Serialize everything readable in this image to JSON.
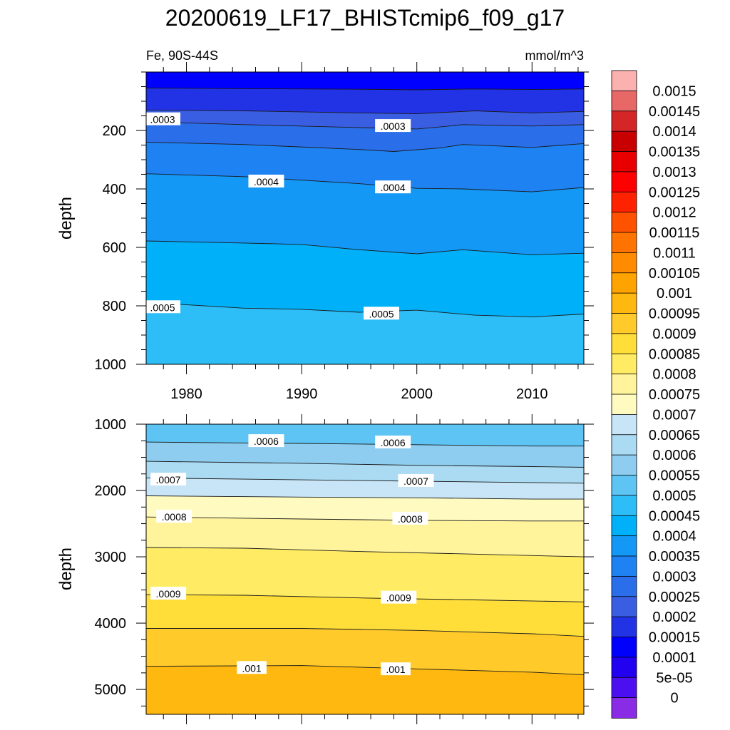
{
  "chart_data": [
    {
      "type": "heatmap",
      "title": "20200619_LF17_BHISTcmip6_f09_g17",
      "left_label": "Fe, 90S-44S",
      "right_label": "mmol/m^3",
      "xlabel": "",
      "ylabel": "depth",
      "xlim": [
        1976.5,
        2014.5
      ],
      "ylim": [
        1000,
        0
      ],
      "xticks": [
        "1980",
        "1990",
        "2000",
        "2010"
      ],
      "yticks": [
        "200",
        "400",
        "600",
        "800",
        "1000"
      ],
      "contours": [
        {
          "level": 0.0002,
          "x": [
            1976.5,
            1985,
            1995,
            2000,
            2005,
            2010,
            2014.5
          ],
          "y": [
            55,
            57,
            59,
            61,
            58,
            60,
            58
          ]
        },
        {
          "level": 0.00025,
          "x": [
            1976.5,
            1985,
            1995,
            2000,
            2005,
            2010,
            2014.5
          ],
          "y": [
            130,
            133,
            140,
            143,
            133,
            140,
            135
          ]
        },
        {
          "level": 0.0003,
          "x": [
            1976.5,
            1985,
            1995,
            2000,
            2002,
            2004,
            2010,
            2014.5
          ],
          "y": [
            170,
            180,
            190,
            195,
            188,
            180,
            185,
            180
          ]
        },
        {
          "level": 0.00035,
          "x": [
            1976.5,
            1985,
            1995,
            1998,
            2002,
            2004,
            2010,
            2014.5
          ],
          "y": [
            240,
            248,
            265,
            272,
            260,
            248,
            258,
            245
          ]
        },
        {
          "level": 0.0004,
          "x": [
            1976.5,
            1985,
            1990,
            1995,
            2000,
            2004,
            2010,
            2014.5
          ],
          "y": [
            348,
            358,
            370,
            382,
            398,
            400,
            410,
            395
          ]
        },
        {
          "level": 0.00045,
          "x": [
            1976.5,
            1985,
            1990,
            1995,
            2000,
            2004,
            2010,
            2014.5
          ],
          "y": [
            578,
            585,
            590,
            608,
            622,
            608,
            625,
            620
          ]
        },
        {
          "level": 0.0005,
          "x": [
            1976.5,
            1985,
            1990,
            1995,
            2000,
            2005,
            2010,
            2014.5
          ],
          "y": [
            788,
            808,
            812,
            822,
            815,
            832,
            838,
            828
          ]
        }
      ],
      "contour_labels": [
        {
          "text": ".0003",
          "x": 1976.5,
          "y": 165
        },
        {
          "text": ".0003",
          "x": 1996.5,
          "y": 188
        },
        {
          "text": ".0004",
          "x": 1985.5,
          "y": 378
        },
        {
          "text": ".0004",
          "x": 1996.5,
          "y": 398
        },
        {
          "text": ".0005",
          "x": 1976.5,
          "y": 808
        },
        {
          "text": ".0005",
          "x": 1995.5,
          "y": 830
        }
      ]
    },
    {
      "type": "heatmap",
      "xlabel": "",
      "ylabel": "depth",
      "xlim": [
        1976.5,
        2014.5
      ],
      "ylim": [
        5375,
        1000
      ],
      "yticks": [
        "1000",
        "2000",
        "3000",
        "4000",
        "5000"
      ],
      "contours": [
        {
          "level": 0.0006,
          "x": [
            1976.5,
            1990,
            2000,
            2010,
            2014.5
          ],
          "y": [
            1270,
            1290,
            1310,
            1330,
            1330
          ]
        },
        {
          "level": 0.00065,
          "x": [
            1976.5,
            1990,
            2000,
            2010,
            2014.5
          ],
          "y": [
            1560,
            1590,
            1620,
            1640,
            1650
          ]
        },
        {
          "level": 0.0007,
          "x": [
            1976.5,
            1990,
            2000,
            2010,
            2014.5
          ],
          "y": [
            1810,
            1840,
            1860,
            1880,
            1890
          ]
        },
        {
          "level": 0.00075,
          "x": [
            1976.5,
            1990,
            2000,
            2010,
            2014.5
          ],
          "y": [
            2080,
            2100,
            2110,
            2130,
            2130
          ]
        },
        {
          "level": 0.0008,
          "x": [
            1976.5,
            1990,
            2000,
            2010,
            2014.5
          ],
          "y": [
            2400,
            2430,
            2450,
            2460,
            2460
          ]
        },
        {
          "level": 0.00085,
          "x": [
            1976.5,
            1985,
            1995,
            2005,
            2014.5
          ],
          "y": [
            2860,
            2870,
            2920,
            2960,
            3000
          ]
        },
        {
          "level": 0.0009,
          "x": [
            1976.5,
            1985,
            1995,
            2005,
            2014.5
          ],
          "y": [
            3570,
            3580,
            3620,
            3650,
            3680
          ]
        },
        {
          "level": 0.00095,
          "x": [
            1976.5,
            1990,
            2000,
            2010,
            2014.5
          ],
          "y": [
            4080,
            4080,
            4110,
            4160,
            4200
          ]
        },
        {
          "level": 0.001,
          "x": [
            1976.5,
            1990,
            2000,
            2010,
            2014.5
          ],
          "y": [
            4650,
            4640,
            4690,
            4740,
            4780
          ]
        }
      ],
      "contour_labels": [
        {
          "text": ".0006",
          "x": 1985.5,
          "y": 1270
        },
        {
          "text": ".0006",
          "x": 1996.5,
          "y": 1290
        },
        {
          "text": ".0007",
          "x": 1977,
          "y": 1850
        },
        {
          "text": ".0007",
          "x": 1998.5,
          "y": 1870
        },
        {
          "text": ".0008",
          "x": 1977.5,
          "y": 2410
        },
        {
          "text": ".0008",
          "x": 1998,
          "y": 2440
        },
        {
          "text": ".0009",
          "x": 1977,
          "y": 3570
        },
        {
          "text": ".0009",
          "x": 1997,
          "y": 3630
        },
        {
          "text": ".001",
          "x": 1984.5,
          "y": 4690
        },
        {
          "text": ".001",
          "x": 1997,
          "y": 4710
        }
      ]
    }
  ],
  "colorbar": {
    "labels": [
      "0.0015",
      "0.00145",
      "0.0014",
      "0.00135",
      "0.0013",
      "0.00125",
      "0.0012",
      "0.00115",
      "0.0011",
      "0.00105",
      "0.001",
      "0.00095",
      "0.0009",
      "0.00085",
      "0.0008",
      "0.00075",
      "0.0007",
      "0.00065",
      "0.0006",
      "0.00055",
      "0.0005",
      "0.00045",
      "0.0004",
      "0.00035",
      "0.0003",
      "0.00025",
      "0.0002",
      "0.00015",
      "0.0001",
      "5e-05",
      "0"
    ],
    "colors": [
      "#fcb1b1",
      "#e86767",
      "#d42626",
      "#c80000",
      "#e80000",
      "#ff0000",
      "#ff2200",
      "#ff5200",
      "#ff7300",
      "#ff8c00",
      "#ffa300",
      "#ffb810",
      "#ffca2a",
      "#ffde3a",
      "#ffec64",
      "#fff39c",
      "#fffbc0",
      "#c7e5f6",
      "#aadbf3",
      "#8ecdef",
      "#5ec4f4",
      "#2ebef7",
      "#00b0f8",
      "#1498f5",
      "#1e82f2",
      "#2a6eea",
      "#3a5ee2",
      "#2233e6",
      "#0000ff",
      "#2200f0",
      "#4c10f0",
      "#8a2be6"
    ]
  }
}
